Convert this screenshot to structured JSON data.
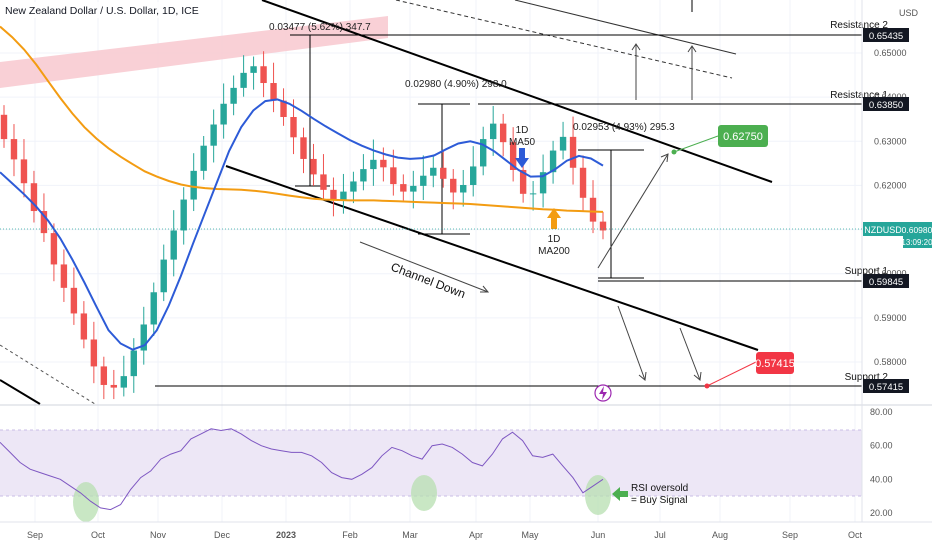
{
  "header": {
    "symbol_title": "New Zealand Dollar / U.S. Dollar, 1D, ICE"
  },
  "currency_label": "USD",
  "chart_data": [
    {
      "type": "line",
      "name": "price",
      "xlabel": "",
      "ylabel": "",
      "ylim": [
        0.5715,
        0.6596
      ],
      "y_ticks": [
        0.58,
        0.59,
        0.6,
        0.61,
        0.62,
        0.63,
        0.64,
        0.65
      ],
      "x_ticks": [
        "Sep",
        "Oct",
        "Nov",
        "Dec",
        "2023",
        "Feb",
        "Mar",
        "Apr",
        "May",
        "Jun",
        "Jul",
        "Aug",
        "Sep",
        "Oct"
      ],
      "candles_close": [
        0.6305,
        0.6259,
        0.6205,
        0.6142,
        0.6092,
        0.6021,
        0.5968,
        0.591,
        0.5851,
        0.579,
        0.5748,
        0.5742,
        0.5768,
        0.5826,
        0.5885,
        0.5958,
        0.6032,
        0.6098,
        0.6168,
        0.6233,
        0.629,
        0.6338,
        0.6385,
        0.6421,
        0.6455,
        0.647,
        0.6432,
        0.6392,
        0.6355,
        0.6309,
        0.626,
        0.6225,
        0.619,
        0.6168,
        0.6186,
        0.6209,
        0.6237,
        0.6258,
        0.6241,
        0.6203,
        0.6186,
        0.6199,
        0.6222,
        0.624,
        0.6215,
        0.6184,
        0.6201,
        0.6243,
        0.6305,
        0.634,
        0.6298,
        0.6235,
        0.6181,
        0.6182,
        0.623,
        0.6279,
        0.631,
        0.624,
        0.6172,
        0.6118,
        0.6098
      ],
      "series": [
        {
          "name": "1D MA50",
          "color": "#2d5bd7",
          "values": [
            0.623,
            0.6205,
            0.618,
            0.6152,
            0.612,
            0.608,
            0.6032,
            0.598,
            0.5925,
            0.5872,
            0.5842,
            0.5828,
            0.5838,
            0.5872,
            0.5928,
            0.5995,
            0.6068,
            0.6138,
            0.6208,
            0.6278,
            0.6332,
            0.637,
            0.6391,
            0.6395,
            0.6385,
            0.6369,
            0.6351,
            0.6334,
            0.6318,
            0.6303,
            0.629,
            0.6279,
            0.627,
            0.6263,
            0.626,
            0.6262,
            0.6268,
            0.6282,
            0.6295,
            0.63,
            0.6293,
            0.6277,
            0.6256,
            0.6235,
            0.622,
            0.6221,
            0.6236,
            0.6256,
            0.6267,
            0.6261,
            0.6245
          ]
        },
        {
          "name": "1D MA200",
          "color": "#f39c12",
          "values": [
            0.656,
            0.6536,
            0.6508,
            0.6474,
            0.6436,
            0.6398,
            0.6363,
            0.6332,
            0.6306,
            0.6284,
            0.6265,
            0.6248,
            0.6232,
            0.622,
            0.621,
            0.6202,
            0.6197,
            0.6194,
            0.6192,
            0.6191,
            0.619,
            0.6188,
            0.6185,
            0.6181,
            0.6177,
            0.6173,
            0.617,
            0.6168,
            0.6167,
            0.6166,
            0.6166,
            0.6166,
            0.6165,
            0.6164,
            0.6163,
            0.6162,
            0.6161,
            0.616,
            0.6159,
            0.6158,
            0.6156,
            0.6154,
            0.6152,
            0.615,
            0.6148,
            0.6146,
            0.6145,
            0.6143,
            0.6142,
            0.6141,
            0.614
          ]
        }
      ]
    },
    {
      "type": "line",
      "name": "RSI",
      "xlabel": "",
      "ylabel": "",
      "ylim": [
        15,
        85
      ],
      "y_ticks": [
        20.0,
        40.0,
        60.0,
        80.0
      ],
      "band": [
        30,
        70
      ],
      "series": [
        {
          "name": "",
          "color": "#7e57c2",
          "values": [
            62,
            56,
            50,
            46,
            44,
            42,
            40,
            36,
            32,
            27,
            23,
            22,
            25,
            34,
            41,
            45,
            52,
            55,
            57,
            64,
            67,
            70,
            69,
            70,
            67,
            63,
            60,
            58,
            57,
            56,
            56,
            54,
            50,
            44,
            41,
            40,
            43,
            47,
            54,
            59,
            57,
            54,
            52,
            60,
            61,
            59,
            55,
            50,
            48,
            55,
            64,
            68,
            63,
            54,
            53,
            55,
            48,
            41,
            32,
            36,
            40
          ]
        }
      ]
    }
  ],
  "price_axis": {
    "ticks": [
      "0.65000",
      "0.64000",
      "0.63000",
      "0.62000",
      "0.61000",
      "0.60000",
      "0.59000",
      "0.58000"
    ]
  },
  "rsi_axis": {
    "ticks": [
      "80.00",
      "60.00",
      "40.00",
      "20.00"
    ]
  },
  "time_axis": {
    "ticks": [
      "Sep",
      "Oct",
      "Nov",
      "Dec",
      "2023",
      "Feb",
      "Mar",
      "Apr",
      "May",
      "Jun",
      "Jul",
      "Aug",
      "Sep",
      "Oct"
    ]
  },
  "levels": [
    {
      "name": "Resistance 2",
      "value": "0.65435",
      "y_value": 0.65435
    },
    {
      "name": "Resistance 1",
      "value": "0.63850",
      "y_value": 0.6385
    },
    {
      "name": "Support 1",
      "value": "0.59845",
      "y_value": 0.59845
    },
    {
      "name": "Support 2",
      "value": "0.57415",
      "y_value": 0.57415
    }
  ],
  "current_price": {
    "symbol": "NZDUSD",
    "value": "0.60980",
    "countdown": "13:09:20",
    "color": "#26a69a"
  },
  "targets": [
    {
      "value": "0.62750",
      "color": "#4caf50"
    },
    {
      "value": "0.57415",
      "color": "#f23645"
    }
  ],
  "annotations": {
    "measure_1": "0.03477 (5.62%) 347.7",
    "measure_2": "0.02980 (4.90%) 298.0",
    "measure_3": "0.02953 (4.93%) 295.3",
    "ma50_label_line1": "1D",
    "ma50_label_line2": "MA50",
    "ma200_label_line1": "1D",
    "ma200_label_line2": "MA200",
    "channel_label": "Channel Down",
    "rsi_note_line1": "RSI oversold",
    "rsi_note_line2": "= Buy Signal"
  },
  "icon": "lightning-icon",
  "colors": {
    "bull": "#26a69a",
    "bear": "#ef5350",
    "ma50": "#2d5bd7",
    "ma200": "#f39c12",
    "rsi": "#7e57c2",
    "rsi_band": "#ede7f6",
    "zone": "#f8c8cf"
  }
}
